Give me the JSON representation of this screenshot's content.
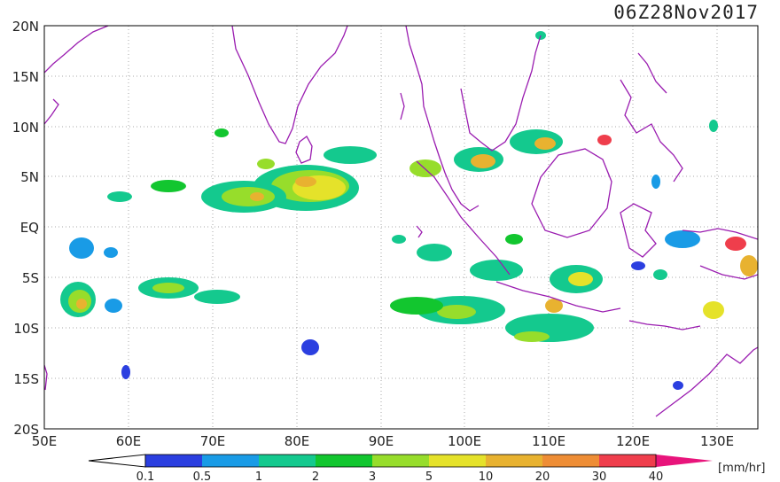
{
  "title": "06Z28Nov2017",
  "lat_ticks": [
    "20N",
    "15N",
    "10N",
    "5N",
    "EQ",
    "5S",
    "10S",
    "15S",
    "20S"
  ],
  "lon_ticks": [
    "50E",
    "60E",
    "70E",
    "80E",
    "90E",
    "100E",
    "110E",
    "120E",
    "130E"
  ],
  "colorbar": {
    "unit": "[mm/hr]",
    "levels": [
      "0.1",
      "0.5",
      "1",
      "2",
      "3",
      "5",
      "10",
      "20",
      "30",
      "40"
    ],
    "colors": [
      "#ffffff",
      "#2b3fe0",
      "#199be6",
      "#14c98e",
      "#12c62f",
      "#97dd2b",
      "#e5e22a",
      "#e8b230",
      "#ee8d35",
      "#ef3e4c",
      "#e8147b"
    ]
  },
  "map": {
    "extent": {
      "lon": [
        50,
        135
      ],
      "lat": [
        -20,
        20
      ]
    },
    "coast_color": "#9a1cb0",
    "grid": "dotted"
  }
}
